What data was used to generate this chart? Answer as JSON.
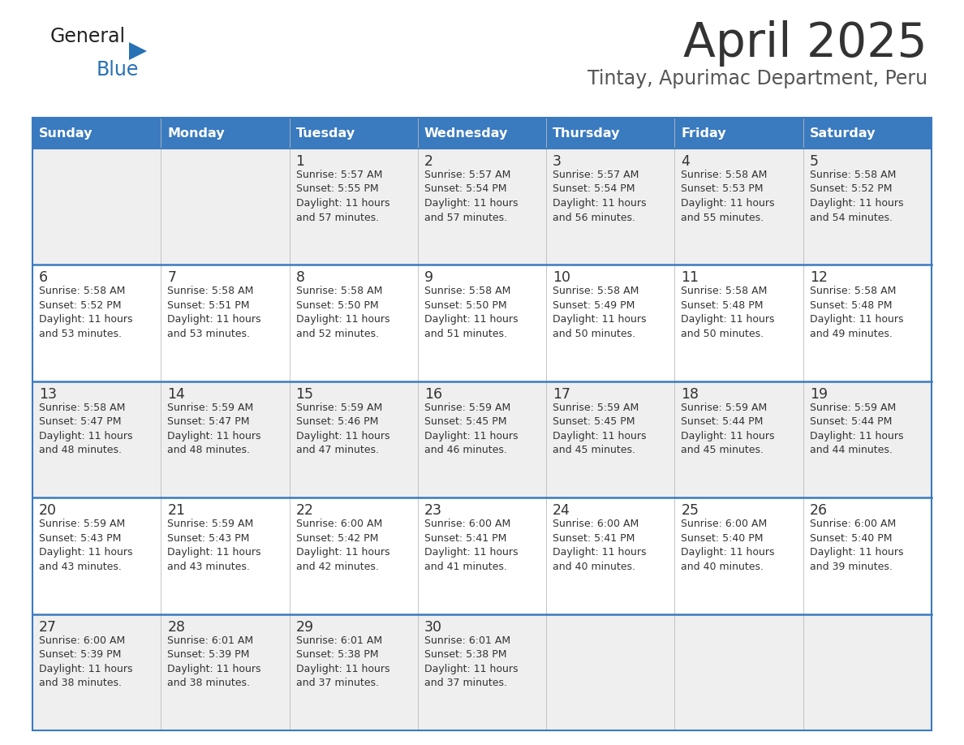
{
  "title": "April 2025",
  "subtitle": "Tintay, Apurimac Department, Peru",
  "days_of_week": [
    "Sunday",
    "Monday",
    "Tuesday",
    "Wednesday",
    "Thursday",
    "Friday",
    "Saturday"
  ],
  "header_bg": "#3a7abf",
  "header_text": "#ffffff",
  "cell_bg_odd": "#efefef",
  "cell_bg_even": "#ffffff",
  "cell_border": "#3a7abf",
  "title_color": "#333333",
  "subtitle_color": "#555555",
  "text_color": "#333333",
  "logo_black": "#222222",
  "logo_blue": "#2771b5",
  "calendar_data": [
    [
      null,
      null,
      {
        "day": 1,
        "sunrise": "5:57 AM",
        "sunset": "5:55 PM",
        "daylight_h": "11 hours",
        "daylight_m": "57 minutes"
      },
      {
        "day": 2,
        "sunrise": "5:57 AM",
        "sunset": "5:54 PM",
        "daylight_h": "11 hours",
        "daylight_m": "57 minutes"
      },
      {
        "day": 3,
        "sunrise": "5:57 AM",
        "sunset": "5:54 PM",
        "daylight_h": "11 hours",
        "daylight_m": "56 minutes"
      },
      {
        "day": 4,
        "sunrise": "5:58 AM",
        "sunset": "5:53 PM",
        "daylight_h": "11 hours",
        "daylight_m": "55 minutes"
      },
      {
        "day": 5,
        "sunrise": "5:58 AM",
        "sunset": "5:52 PM",
        "daylight_h": "11 hours",
        "daylight_m": "54 minutes"
      }
    ],
    [
      {
        "day": 6,
        "sunrise": "5:58 AM",
        "sunset": "5:52 PM",
        "daylight_h": "11 hours",
        "daylight_m": "53 minutes"
      },
      {
        "day": 7,
        "sunrise": "5:58 AM",
        "sunset": "5:51 PM",
        "daylight_h": "11 hours",
        "daylight_m": "53 minutes"
      },
      {
        "day": 8,
        "sunrise": "5:58 AM",
        "sunset": "5:50 PM",
        "daylight_h": "11 hours",
        "daylight_m": "52 minutes"
      },
      {
        "day": 9,
        "sunrise": "5:58 AM",
        "sunset": "5:50 PM",
        "daylight_h": "11 hours",
        "daylight_m": "51 minutes"
      },
      {
        "day": 10,
        "sunrise": "5:58 AM",
        "sunset": "5:49 PM",
        "daylight_h": "11 hours",
        "daylight_m": "50 minutes"
      },
      {
        "day": 11,
        "sunrise": "5:58 AM",
        "sunset": "5:48 PM",
        "daylight_h": "11 hours",
        "daylight_m": "50 minutes"
      },
      {
        "day": 12,
        "sunrise": "5:58 AM",
        "sunset": "5:48 PM",
        "daylight_h": "11 hours",
        "daylight_m": "49 minutes"
      }
    ],
    [
      {
        "day": 13,
        "sunrise": "5:58 AM",
        "sunset": "5:47 PM",
        "daylight_h": "11 hours",
        "daylight_m": "48 minutes"
      },
      {
        "day": 14,
        "sunrise": "5:59 AM",
        "sunset": "5:47 PM",
        "daylight_h": "11 hours",
        "daylight_m": "48 minutes"
      },
      {
        "day": 15,
        "sunrise": "5:59 AM",
        "sunset": "5:46 PM",
        "daylight_h": "11 hours",
        "daylight_m": "47 minutes"
      },
      {
        "day": 16,
        "sunrise": "5:59 AM",
        "sunset": "5:45 PM",
        "daylight_h": "11 hours",
        "daylight_m": "46 minutes"
      },
      {
        "day": 17,
        "sunrise": "5:59 AM",
        "sunset": "5:45 PM",
        "daylight_h": "11 hours",
        "daylight_m": "45 minutes"
      },
      {
        "day": 18,
        "sunrise": "5:59 AM",
        "sunset": "5:44 PM",
        "daylight_h": "11 hours",
        "daylight_m": "45 minutes"
      },
      {
        "day": 19,
        "sunrise": "5:59 AM",
        "sunset": "5:44 PM",
        "daylight_h": "11 hours",
        "daylight_m": "44 minutes"
      }
    ],
    [
      {
        "day": 20,
        "sunrise": "5:59 AM",
        "sunset": "5:43 PM",
        "daylight_h": "11 hours",
        "daylight_m": "43 minutes"
      },
      {
        "day": 21,
        "sunrise": "5:59 AM",
        "sunset": "5:43 PM",
        "daylight_h": "11 hours",
        "daylight_m": "43 minutes"
      },
      {
        "day": 22,
        "sunrise": "6:00 AM",
        "sunset": "5:42 PM",
        "daylight_h": "11 hours",
        "daylight_m": "42 minutes"
      },
      {
        "day": 23,
        "sunrise": "6:00 AM",
        "sunset": "5:41 PM",
        "daylight_h": "11 hours",
        "daylight_m": "41 minutes"
      },
      {
        "day": 24,
        "sunrise": "6:00 AM",
        "sunset": "5:41 PM",
        "daylight_h": "11 hours",
        "daylight_m": "40 minutes"
      },
      {
        "day": 25,
        "sunrise": "6:00 AM",
        "sunset": "5:40 PM",
        "daylight_h": "11 hours",
        "daylight_m": "40 minutes"
      },
      {
        "day": 26,
        "sunrise": "6:00 AM",
        "sunset": "5:40 PM",
        "daylight_h": "11 hours",
        "daylight_m": "39 minutes"
      }
    ],
    [
      {
        "day": 27,
        "sunrise": "6:00 AM",
        "sunset": "5:39 PM",
        "daylight_h": "11 hours",
        "daylight_m": "38 minutes"
      },
      {
        "day": 28,
        "sunrise": "6:01 AM",
        "sunset": "5:39 PM",
        "daylight_h": "11 hours",
        "daylight_m": "38 minutes"
      },
      {
        "day": 29,
        "sunrise": "6:01 AM",
        "sunset": "5:38 PM",
        "daylight_h": "11 hours",
        "daylight_m": "37 minutes"
      },
      {
        "day": 30,
        "sunrise": "6:01 AM",
        "sunset": "5:38 PM",
        "daylight_h": "11 hours",
        "daylight_m": "37 minutes"
      },
      null,
      null,
      null
    ]
  ]
}
